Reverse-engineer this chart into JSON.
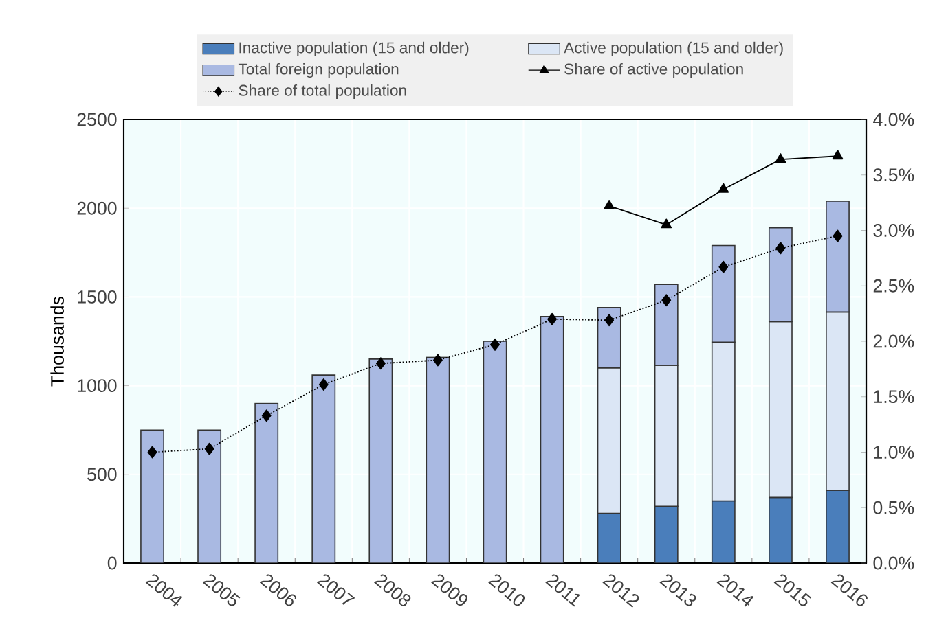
{
  "chart_data": {
    "type": "bar",
    "stacked": true,
    "ylabel": "Thousands",
    "legend": "top",
    "grid": true,
    "categories": [
      "2004",
      "2005",
      "2006",
      "2007",
      "2008",
      "2009",
      "2010",
      "2011",
      "2012",
      "2013",
      "2014",
      "2015",
      "2016"
    ],
    "ylim": [
      0,
      2500
    ],
    "yticks": [
      0,
      500,
      1000,
      1500,
      2000,
      2500
    ],
    "y2lim": [
      0,
      4
    ],
    "y2ticks": [
      {
        "value": 0,
        "label": "0.0%"
      },
      {
        "value": 0.5,
        "label": "0.5%"
      },
      {
        "value": 1,
        "label": "1.0%"
      },
      {
        "value": 1.5,
        "label": "1.5%"
      },
      {
        "value": 2,
        "label": "2.0%"
      },
      {
        "value": 2.5,
        "label": "2.5%"
      },
      {
        "value": 3,
        "label": "3.0%"
      },
      {
        "value": 3.5,
        "label": "3.5%"
      },
      {
        "value": 4,
        "label": "4.0%"
      }
    ],
    "series": [
      {
        "name": "Inactive population (15 and older)",
        "color": "#4a7ebb",
        "values": [
          null,
          null,
          null,
          null,
          null,
          null,
          null,
          null,
          280,
          320,
          350,
          370,
          410
        ]
      },
      {
        "name": "Active population (15 and older)",
        "color": "#dbe6f5",
        "values": [
          null,
          null,
          null,
          null,
          null,
          null,
          null,
          null,
          820,
          795,
          895,
          990,
          1005
        ]
      },
      {
        "name": "Total foreign population",
        "color": "#a9b9e2",
        "values": [
          750,
          750,
          900,
          1060,
          1150,
          1160,
          1250,
          1390,
          340,
          455,
          545,
          530,
          625
        ]
      },
      {
        "name": "Share of active population",
        "type": "line",
        "axis": "y2",
        "color": "#000000",
        "marker": "triangle",
        "line_style": "solid",
        "values": [
          null,
          null,
          null,
          null,
          null,
          null,
          null,
          null,
          3.22,
          3.05,
          3.37,
          3.64,
          3.67
        ]
      },
      {
        "name": "Share of total population",
        "type": "line",
        "axis": "y2",
        "color": "#000000",
        "marker": "diamond",
        "line_style": "dotted",
        "values": [
          1.0,
          1.03,
          1.33,
          1.61,
          1.8,
          1.83,
          1.97,
          2.2,
          2.19,
          2.37,
          2.67,
          2.84,
          2.95
        ]
      }
    ]
  }
}
